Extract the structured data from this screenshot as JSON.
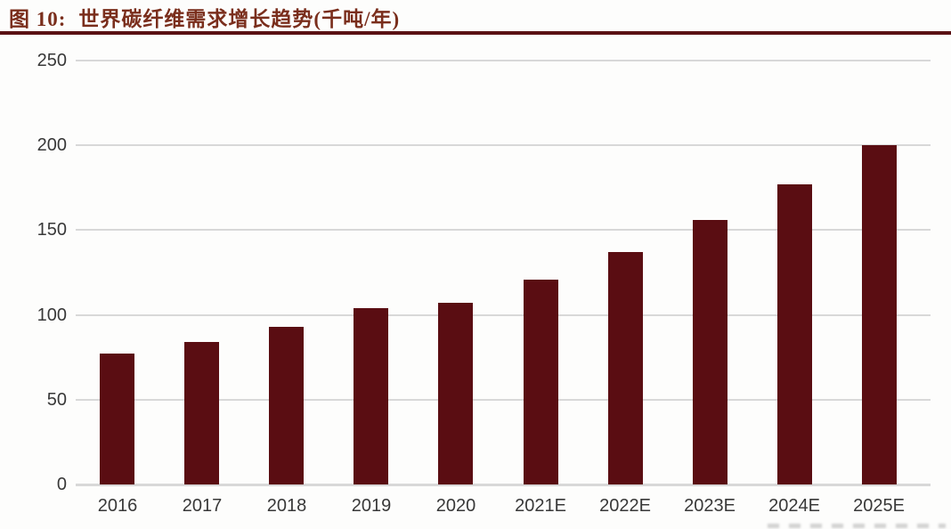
{
  "figure": {
    "label": "图 10:",
    "title": "世界碳纤维需求增长趋势(千吨/年)"
  },
  "colors": {
    "bar": "#5A0D12",
    "title_text": "#7A2E1C",
    "underline": "#5A1114",
    "gridline": "#D8D8D8",
    "axis_text": "#383838"
  },
  "chart_data": {
    "type": "bar",
    "title": "世界碳纤维需求增长趋势(千吨/年)",
    "categories": [
      "2016",
      "2017",
      "2018",
      "2019",
      "2020",
      "2021E",
      "2022E",
      "2023E",
      "2024E",
      "2025E"
    ],
    "values": [
      77,
      84,
      93,
      104,
      107,
      121,
      137,
      156,
      177,
      200
    ],
    "xlabel": "",
    "ylabel": "",
    "ylim": [
      0,
      250
    ],
    "yticks": [
      0,
      50,
      100,
      150,
      200,
      250
    ],
    "grid": true,
    "legend": false,
    "bar_color": "#5A0D12"
  }
}
